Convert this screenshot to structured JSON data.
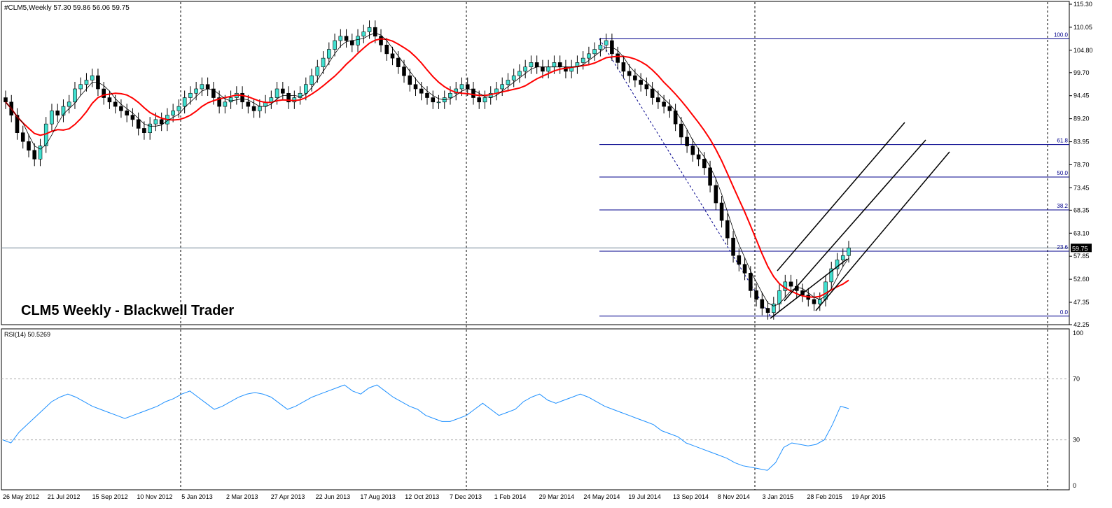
{
  "header": {
    "symbol_line": "#CLM5,Weekly  57.30 59.86 56.06 59.75"
  },
  "watermark": "CLM5 Weekly - Blackwell Trader",
  "price_axis": {
    "ticks": [
      "115.30",
      "110.05",
      "104.80",
      "99.70",
      "94.45",
      "89.20",
      "83.95",
      "78.70",
      "73.45",
      "68.35",
      "63.10",
      "57.85",
      "52.60",
      "47.35",
      "42.25"
    ],
    "current_price": "59.75"
  },
  "fibonacci": {
    "levels": [
      {
        "label": "100.0",
        "price": 107.4
      },
      {
        "label": "61.8",
        "price": 83.3
      },
      {
        "label": "50.0",
        "price": 75.9
      },
      {
        "label": "38.2",
        "price": 68.4
      },
      {
        "label": "23.6",
        "price": 59.0
      },
      {
        "label": "0.0",
        "price": 44.2
      }
    ],
    "color": "#00008b"
  },
  "rsi": {
    "label": "RSI(14) 50.5269",
    "ticks": [
      "100",
      "70",
      "30",
      "0"
    ]
  },
  "time_axis": [
    "26 May 2012",
    "21 Jul 2012",
    "15 Sep 2012",
    "10 Nov 2012",
    "5 Jan 2013",
    "2 Mar 2013",
    "27 Apr 2013",
    "22 Jun 2013",
    "17 Aug 2013",
    "12 Oct 2013",
    "7 Dec 2013",
    "1 Feb 2014",
    "29 Mar 2014",
    "24 May 2014",
    "19 Jul 2014",
    "13 Sep 2014",
    "8 Nov 2014",
    "3 Jan 2015",
    "28 Feb 2015",
    "19 Apr 2015"
  ],
  "colors": {
    "bull": "#40e0d0",
    "bear": "#000000",
    "ma_slow": "#ff0000",
    "ma_fast": "#000000",
    "rsi": "#1e90ff"
  },
  "chart_data": {
    "type": "candlestick",
    "title": "CLM5 Weekly - Blackwell Trader",
    "close": [
      93,
      90,
      86,
      84,
      82,
      80,
      83,
      88,
      91,
      90,
      92,
      93,
      96,
      97,
      98,
      99,
      96,
      94,
      93,
      92,
      91,
      90,
      89,
      87,
      86,
      88,
      89,
      88,
      90,
      91,
      92,
      94,
      95,
      96,
      97,
      96,
      94,
      92,
      93,
      94,
      95,
      93,
      92,
      91,
      92,
      93,
      94,
      96,
      95,
      93,
      94,
      95,
      97,
      99,
      101,
      103,
      105,
      107,
      108,
      107,
      106,
      108,
      109,
      110,
      108,
      106,
      104,
      103,
      101,
      99,
      97,
      96,
      95,
      94,
      93,
      93,
      94,
      95,
      96,
      97,
      96,
      94,
      93,
      94,
      95,
      96,
      97,
      98,
      99,
      100,
      101,
      102,
      101,
      100,
      101,
      102,
      101,
      100,
      101,
      102,
      103,
      104,
      105,
      106,
      107,
      104,
      102,
      100,
      99,
      98,
      97,
      96,
      94,
      93,
      92,
      91,
      88,
      85,
      83,
      81,
      80,
      78,
      74,
      70,
      66,
      62,
      58,
      56,
      54,
      50,
      48,
      46,
      45,
      47,
      50,
      52,
      51,
      50,
      49,
      48,
      47,
      48,
      52,
      55,
      57,
      58,
      59.75
    ],
    "rsi": [
      30,
      28,
      35,
      40,
      45,
      50,
      55,
      58,
      60,
      58,
      55,
      52,
      50,
      48,
      46,
      44,
      46,
      48,
      50,
      52,
      55,
      57,
      60,
      62,
      58,
      54,
      50,
      52,
      55,
      58,
      60,
      61,
      60,
      58,
      54,
      50,
      52,
      55,
      58,
      60,
      62,
      64,
      66,
      62,
      60,
      64,
      66,
      62,
      58,
      55,
      52,
      50,
      46,
      44,
      42,
      42,
      44,
      46,
      50,
      54,
      50,
      46,
      48,
      50,
      55,
      58,
      60,
      56,
      54,
      56,
      58,
      60,
      58,
      55,
      52,
      50,
      48,
      46,
      44,
      42,
      40,
      36,
      34,
      32,
      28,
      26,
      24,
      22,
      20,
      18,
      15,
      13,
      12,
      11,
      10,
      15,
      25,
      28,
      27,
      26,
      27,
      30,
      40,
      52,
      50.5269
    ],
    "fib_high": 107.4,
    "fib_low": 44.2,
    "ylim": [
      42.25,
      115.3
    ]
  }
}
